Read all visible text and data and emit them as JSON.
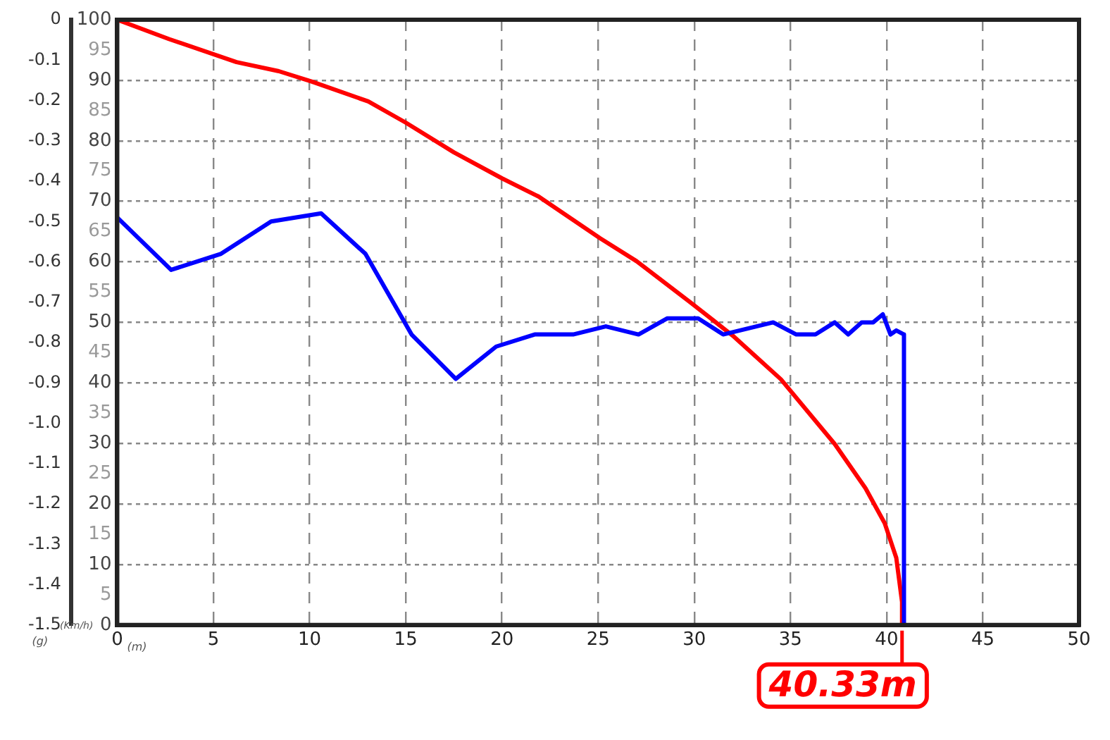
{
  "chart_data": {
    "type": "line",
    "xlabel": "(m)",
    "ylabel": "(g)",
    "y2label": "(Km/h)",
    "xlim": [
      0,
      50
    ],
    "xticks": [
      0,
      5,
      10,
      15,
      20,
      25,
      30,
      35,
      40,
      45,
      50
    ],
    "ylim": [
      -1.5,
      0
    ],
    "yticks": [
      -1.5,
      -1.4,
      -1.3,
      -1.2,
      -1.1,
      {
        "value": -1,
        "label": "-1.0"
      },
      -0.9,
      -0.8,
      -0.7,
      -0.6,
      -0.5,
      -0.4,
      -0.3,
      -0.2,
      -0.1,
      0
    ],
    "y2lim": [
      0,
      100
    ],
    "y2ticks": [
      0,
      5,
      10,
      15,
      20,
      25,
      30,
      35,
      40,
      45,
      50,
      55,
      60,
      65,
      70,
      75,
      80,
      85,
      90,
      95,
      100
    ],
    "grid": true,
    "marker": "none",
    "line_style": "solid",
    "annotations": [
      "40.33m"
    ],
    "series": [
      {
        "color": "#0000ff",
        "axis": "y",
        "x": [
          0,
          2.8,
          5.4,
          8.0,
          10.6,
          12.9,
          15.3,
          17.6,
          19.7,
          21.7,
          23.7,
          25.4,
          27.1,
          28.6,
          29.2,
          30.2,
          31.5,
          34.1,
          35.3,
          36.3,
          37.3,
          38.0,
          38.7,
          39.3,
          39.8,
          40.2,
          40.5,
          40.9,
          40.9
        ],
        "values": [
          -0.49,
          -0.62,
          -0.58,
          -0.5,
          -0.48,
          -0.58,
          -0.78,
          -0.89,
          -0.81,
          -0.78,
          -0.78,
          -0.76,
          -0.78,
          -0.74,
          -0.74,
          -0.74,
          -0.78,
          -0.75,
          -0.78,
          -0.78,
          -0.75,
          -0.78,
          -0.75,
          -0.75,
          -0.73,
          -0.78,
          -0.77,
          -0.78,
          -1.5
        ]
      },
      {
        "color": "#ff0000",
        "axis": "y2",
        "x": [
          0,
          2.7,
          6.2,
          8.4,
          10.1,
          13.05,
          15.0,
          17.5,
          20.0,
          21.9,
          25.1,
          27.0,
          29.8,
          32.0,
          34.5,
          37.3,
          38.9,
          39.9,
          40.5,
          40.8,
          40.8
        ],
        "values": [
          100,
          96.8,
          93,
          91.5,
          89.8,
          86.5,
          83,
          78.1,
          73.8,
          70.8,
          63.9,
          60.1,
          53.3,
          47.8,
          40.6,
          29.9,
          22.6,
          16.8,
          11.1,
          3.8,
          0
        ]
      }
    ]
  }
}
